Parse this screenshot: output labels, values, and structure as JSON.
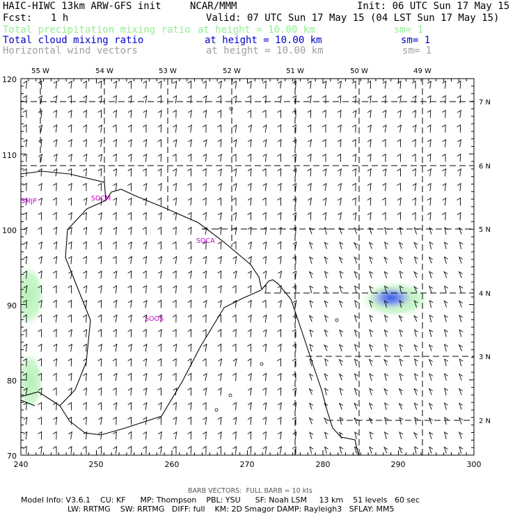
{
  "header": {
    "title": "HAIC-HIWC 13km ARW-GFS init",
    "org": "NCAR/MMM",
    "init": "Init: 06 UTC Sun 17 May 15",
    "fcst_label": "Fcst:",
    "fcst_value": "1 h",
    "valid": "Valid: 07 UTC Sun 17 May 15 (04 LST Sun 17 May 15)",
    "fields": [
      {
        "name": "Total precipitation mixing ratio",
        "height": "at height = 10.00 km",
        "sm": "sm= 1",
        "color": "#90ee90"
      },
      {
        "name": "Total cloud mixing ratio",
        "height": "at height = 10.00 km",
        "sm": "sm= 1",
        "color": "#0000cd"
      },
      {
        "name": "Horizontal wind vectors",
        "height": "at height = 10.00 km",
        "sm": "sm= 1",
        "color": "#a0a0a0"
      }
    ]
  },
  "map": {
    "lon_labels": [
      "55 W",
      "54 W",
      "53 W",
      "52 W",
      "51 W",
      "50 W",
      "49 W"
    ],
    "lat_labels": [
      "7 N",
      "6 N",
      "5 N",
      "4 N",
      "3 N",
      "2 N"
    ],
    "y_grid_labels": [
      "120",
      "110",
      "100",
      "90",
      "80",
      "70"
    ],
    "x_grid_labels": [
      "240",
      "250",
      "260",
      "270",
      "280",
      "290",
      "300"
    ],
    "x_range": [
      240,
      300
    ],
    "y_range": [
      70,
      120
    ],
    "station_labels": [
      "SMJP",
      "SOCM",
      "SOCA",
      "SOOS"
    ],
    "station_color": "#cc00cc",
    "precip_color": "#90ee90",
    "cloud_color": "#5a6ef0"
  },
  "footer": {
    "barb_note": "BARB VECTORS:  FULL BARB = 10 kts",
    "line1": "Model Info: V3.6.1    CU: KF      MP: Thompson    PBL: YSU      SF: Noah LSM     13 km    51 levels   60 sec",
    "line2": "LW: RRTMG    SW: RRTMG   DIFF: full    KM: 2D Smagor DAMP: Rayleigh3   SFLAY: MM5"
  }
}
